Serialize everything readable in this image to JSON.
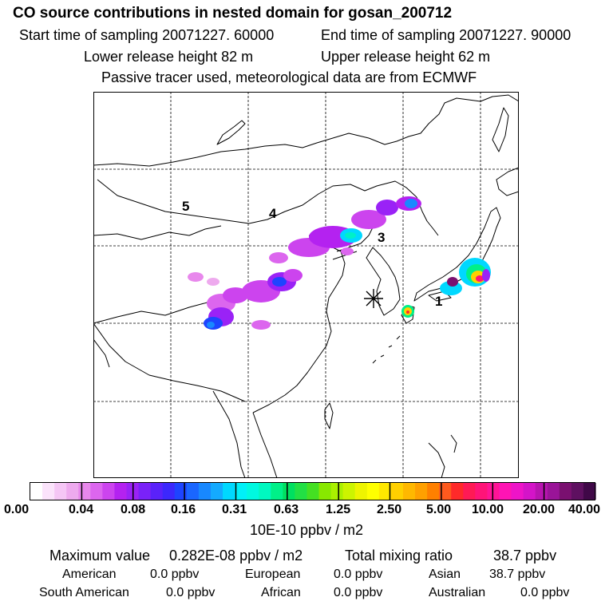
{
  "header": {
    "title": "CO  source contributions in nested domain for gosan_200712",
    "start_time": "Start time of sampling 20071227. 60000",
    "end_time": "End time of sampling 20071227. 90000",
    "lower_height": "Lower release height   82 m",
    "upper_height": "Upper release height   62 m",
    "tracer_note": "Passive tracer used, meteorological data are from ECMWF"
  },
  "map": {
    "region_labels": [
      "5",
      "4",
      "3",
      "1"
    ],
    "receptor_marker": "asterisk",
    "gridlines": "dashed"
  },
  "colorbar": {
    "tick_labels": [
      "0.00",
      "0.04",
      "0.08",
      "0.16",
      "0.31",
      "0.63",
      "1.25",
      "2.50",
      "5.00",
      "10.00",
      "20.00",
      "40.00"
    ],
    "unit": "10E-10 ppbv / m2",
    "segment_colors": [
      "#ffffff",
      "#fbe3fb",
      "#f5c6f5",
      "#eeaaee",
      "#e888ec",
      "#dc66ee",
      "#cc44ee",
      "#b422f0",
      "#9a22f6",
      "#7a22f8",
      "#5a22fa",
      "#3c28fc",
      "#1e44ff",
      "#1a66ff",
      "#1888ff",
      "#14aaff",
      "#00d8ff",
      "#00f0f8",
      "#00f8e0",
      "#00f8c0",
      "#00f088",
      "#00e060",
      "#22e044",
      "#44e022",
      "#88e800",
      "#aaf000",
      "#ccf400",
      "#eef400",
      "#ffff00",
      "#ffe800",
      "#ffd000",
      "#ffb800",
      "#ffa000",
      "#ff8000",
      "#ff5a1e",
      "#ff2a2a",
      "#ff1a55",
      "#ff1478",
      "#ff1496",
      "#ff14b4",
      "#ee14c8",
      "#d414c8",
      "#b814b0",
      "#9a1498",
      "#7a1070",
      "#5e1060",
      "#400848"
    ]
  },
  "stats": {
    "max_label": "Maximum value",
    "max_value": "0.282E-08 ppbv / m2",
    "total_label": "Total mixing ratio",
    "total_value": "38.7 ppbv"
  },
  "regions": [
    {
      "name": "American",
      "value": "0.0 ppbv"
    },
    {
      "name": "European",
      "value": "0.0 ppbv"
    },
    {
      "name": "Asian",
      "value": "38.7 ppbv"
    },
    {
      "name": "South American",
      "value": "0.0 ppbv"
    },
    {
      "name": "African",
      "value": "0.0 ppbv"
    },
    {
      "name": "Australian",
      "value": "0.0 ppbv"
    }
  ]
}
